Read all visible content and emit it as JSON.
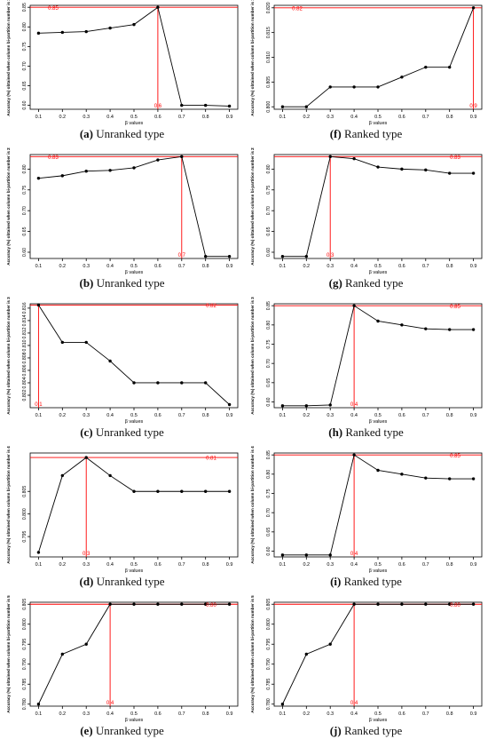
{
  "colors": {
    "line": "#000000",
    "marker": "#000000",
    "ref": "#ff0000",
    "axis": "#000000"
  },
  "chart_data": [
    {
      "id": "a",
      "letter": "(a)",
      "caption": "Unranked type",
      "type": "line",
      "xlabel": "β values",
      "ylabel": "Accuracy (%) obtained when column bi-partition number is 1",
      "x": [
        0.1,
        0.2,
        0.3,
        0.4,
        0.5,
        0.6,
        0.7,
        0.8,
        0.9
      ],
      "y": [
        0.784,
        0.786,
        0.788,
        0.797,
        0.806,
        0.85,
        0.6,
        0.6,
        0.598
      ],
      "ylim": [
        0.59,
        0.855
      ],
      "yticks": [
        0.6,
        0.65,
        0.7,
        0.75,
        0.8,
        0.85
      ],
      "yticklabels": [
        "0.60",
        "0.65",
        "0.70",
        "0.75",
        "0.80",
        "0.85"
      ],
      "ref": {
        "x": 0.6,
        "y": 0.85,
        "xlabel": "0.6",
        "ylabel": "0.85"
      }
    },
    {
      "id": "f",
      "letter": "(f)",
      "caption": "Ranked type",
      "type": "line",
      "xlabel": "β values",
      "ylabel": "Accuracy (%) obtained when column bi-partition number is 1",
      "x": [
        0.1,
        0.2,
        0.3,
        0.4,
        0.5,
        0.6,
        0.7,
        0.8,
        0.9
      ],
      "y": [
        0.8,
        0.8,
        0.804,
        0.804,
        0.804,
        0.806,
        0.808,
        0.808,
        0.82
      ],
      "ylim": [
        0.7995,
        0.8205
      ],
      "yticks": [
        0.8,
        0.805,
        0.81,
        0.815,
        0.82
      ],
      "yticklabels": [
        "0.800",
        "0.805",
        "0.810",
        "0.815",
        "0.820"
      ],
      "ref": {
        "x": 0.9,
        "y": 0.82,
        "xlabel": "0.9",
        "ylabel": "0.82"
      }
    },
    {
      "id": "b",
      "letter": "(b)",
      "caption": "Unranked type",
      "type": "line",
      "xlabel": "β values",
      "ylabel": "Accuracy (%) obtained when column bi-partition number is 2",
      "x": [
        0.1,
        0.2,
        0.3,
        0.4,
        0.5,
        0.6,
        0.7,
        0.8,
        0.9
      ],
      "y": [
        0.778,
        0.784,
        0.795,
        0.797,
        0.803,
        0.822,
        0.83,
        0.59,
        0.59
      ],
      "ylim": [
        0.585,
        0.835
      ],
      "yticks": [
        0.6,
        0.65,
        0.7,
        0.75,
        0.8
      ],
      "yticklabels": [
        "0.60",
        "0.65",
        "0.70",
        "0.75",
        "0.80"
      ],
      "ref": {
        "x": 0.7,
        "y": 0.83,
        "xlabel": "0.7",
        "ylabel": "0.83"
      }
    },
    {
      "id": "g",
      "letter": "(g)",
      "caption": "Ranked type",
      "type": "line",
      "xlabel": "β values",
      "ylabel": "Accuracy (%) obtained when column bi-partition number is 2",
      "x": [
        0.1,
        0.2,
        0.3,
        0.4,
        0.5,
        0.6,
        0.7,
        0.8,
        0.9
      ],
      "y": [
        0.59,
        0.59,
        0.83,
        0.825,
        0.805,
        0.8,
        0.798,
        0.79,
        0.79
      ],
      "ylim": [
        0.585,
        0.835
      ],
      "yticks": [
        0.6,
        0.65,
        0.7,
        0.75,
        0.8
      ],
      "yticklabels": [
        "0.60",
        "0.65",
        "0.70",
        "0.75",
        "0.80"
      ],
      "ref": {
        "x": 0.3,
        "y": 0.83,
        "xlabel": "0.3",
        "ylabel": "0.83"
      }
    },
    {
      "id": "c",
      "letter": "(c)",
      "caption": "Unranked type",
      "type": "line",
      "xlabel": "β values",
      "ylabel": "Accuracy (%) obtained when column bi-partition number is 3",
      "x": [
        0.1,
        0.2,
        0.3,
        0.4,
        0.5,
        0.6,
        0.7,
        0.8,
        0.9
      ],
      "y": [
        0.8165,
        0.8105,
        0.8105,
        0.8075,
        0.804,
        0.804,
        0.804,
        0.804,
        0.8005
      ],
      "ylim": [
        0.8,
        0.8167
      ],
      "yticks": [
        0.802,
        0.804,
        0.806,
        0.808,
        0.81,
        0.812,
        0.814,
        0.816
      ],
      "yticklabels": [
        "0.802",
        "0.804",
        "0.806",
        "0.808",
        "0.810",
        "0.812",
        "0.814",
        "0.816"
      ],
      "ref": {
        "x": 0.1,
        "y": 0.8165,
        "xlabel": "0.1",
        "ylabel": "0.82"
      }
    },
    {
      "id": "h",
      "letter": "(h)",
      "caption": "Ranked type",
      "type": "line",
      "xlabel": "β values",
      "ylabel": "Accuracy (%) obtained when column bi-partition number is 3",
      "x": [
        0.1,
        0.2,
        0.3,
        0.4,
        0.5,
        0.6,
        0.7,
        0.8,
        0.9
      ],
      "y": [
        0.59,
        0.59,
        0.592,
        0.85,
        0.81,
        0.8,
        0.79,
        0.788,
        0.788
      ],
      "ylim": [
        0.585,
        0.855
      ],
      "yticks": [
        0.6,
        0.65,
        0.7,
        0.75,
        0.8,
        0.85
      ],
      "yticklabels": [
        "0.60",
        "0.65",
        "0.70",
        "0.75",
        "0.80",
        "0.85"
      ],
      "ref": {
        "x": 0.4,
        "y": 0.85,
        "xlabel": "0.4",
        "ylabel": "0.85"
      }
    },
    {
      "id": "d",
      "letter": "(d)",
      "caption": "Unranked type",
      "type": "line",
      "xlabel": "β values",
      "ylabel": "Accuracy (%) obtained when column bi-partition number is 4",
      "x": [
        0.1,
        0.2,
        0.3,
        0.4,
        0.5,
        0.6,
        0.7,
        0.8,
        0.9
      ],
      "y": [
        0.7915,
        0.8085,
        0.8125,
        0.8085,
        0.805,
        0.805,
        0.805,
        0.805,
        0.805
      ],
      "ylim": [
        0.7905,
        0.8135
      ],
      "yticks": [
        0.795,
        0.8,
        0.805
      ],
      "yticklabels": [
        "0.795",
        "0.800",
        "0.805"
      ],
      "ref": {
        "x": 0.3,
        "y": 0.8125,
        "xlabel": "0.3",
        "ylabel": "0.81"
      }
    },
    {
      "id": "i",
      "letter": "(i)",
      "caption": "Ranked type",
      "type": "line",
      "xlabel": "β values",
      "ylabel": "Accuracy (%) obtained when column bi-partition number is 4",
      "x": [
        0.1,
        0.2,
        0.3,
        0.4,
        0.5,
        0.6,
        0.7,
        0.8,
        0.9
      ],
      "y": [
        0.59,
        0.59,
        0.59,
        0.85,
        0.81,
        0.8,
        0.79,
        0.788,
        0.788
      ],
      "ylim": [
        0.585,
        0.855
      ],
      "yticks": [
        0.6,
        0.65,
        0.7,
        0.75,
        0.8,
        0.85
      ],
      "yticklabels": [
        "0.60",
        "0.65",
        "0.70",
        "0.75",
        "0.80",
        "0.85"
      ],
      "ref": {
        "x": 0.4,
        "y": 0.85,
        "xlabel": "0.4",
        "ylabel": "0.85"
      }
    },
    {
      "id": "e",
      "letter": "(e)",
      "caption": "Unranked type",
      "type": "line",
      "xlabel": "β values",
      "ylabel": "Accuracy (%) obtained when column bi-partition number is 5",
      "x": [
        0.1,
        0.2,
        0.3,
        0.4,
        0.5,
        0.6,
        0.7,
        0.8,
        0.9
      ],
      "y": [
        0.78,
        0.7925,
        0.795,
        0.805,
        0.805,
        0.805,
        0.805,
        0.805,
        0.805
      ],
      "ylim": [
        0.7795,
        0.8055
      ],
      "yticks": [
        0.78,
        0.785,
        0.79,
        0.795,
        0.8,
        0.805
      ],
      "yticklabels": [
        "0.780",
        "0.785",
        "0.790",
        "0.795",
        "0.800",
        "0.805"
      ],
      "ref": {
        "x": 0.4,
        "y": 0.805,
        "xlabel": "0.4",
        "ylabel": "0.80"
      }
    },
    {
      "id": "j",
      "letter": "(j)",
      "caption": "Ranked type",
      "type": "line",
      "xlabel": "β values",
      "ylabel": "Accuracy (%) obtained when column bi-partition number is 5",
      "x": [
        0.1,
        0.2,
        0.3,
        0.4,
        0.5,
        0.6,
        0.7,
        0.8,
        0.9
      ],
      "y": [
        0.78,
        0.7925,
        0.795,
        0.805,
        0.805,
        0.805,
        0.805,
        0.805,
        0.805
      ],
      "ylim": [
        0.7795,
        0.8055
      ],
      "yticks": [
        0.78,
        0.785,
        0.79,
        0.795,
        0.8,
        0.805
      ],
      "yticklabels": [
        "0.780",
        "0.785",
        "0.790",
        "0.795",
        "0.800",
        "0.805"
      ],
      "ref": {
        "x": 0.4,
        "y": 0.805,
        "xlabel": "0.4",
        "ylabel": "0.80"
      }
    }
  ]
}
